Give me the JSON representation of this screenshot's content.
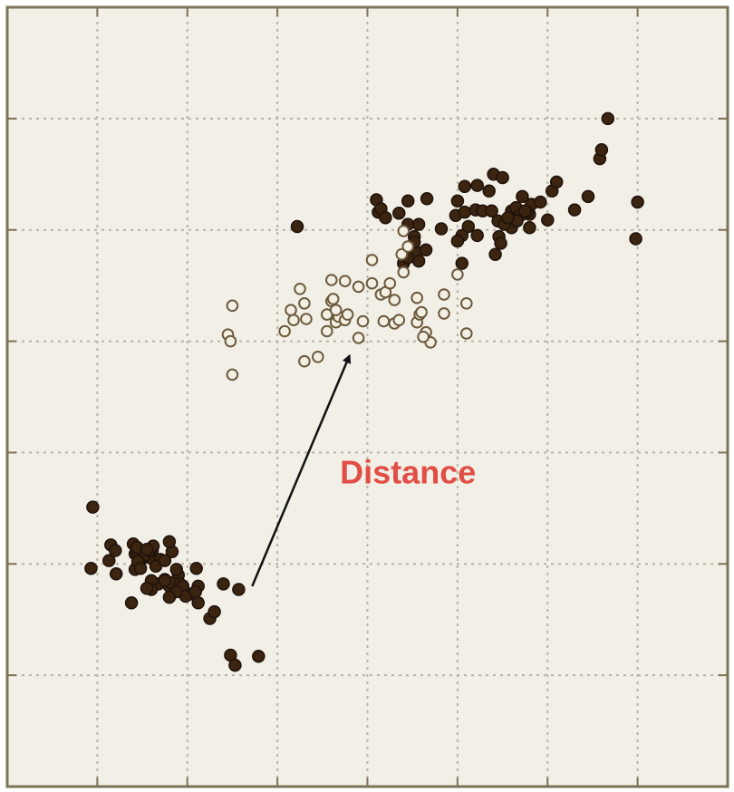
{
  "chart_data": {
    "type": "scatter",
    "title": "",
    "xlabel": "",
    "ylabel": "",
    "xlim": [
      0,
      8
    ],
    "ylim": [
      0,
      7
    ],
    "x_gridlines": [
      1,
      2,
      3,
      4,
      5,
      6,
      7
    ],
    "y_gridlines": [
      1,
      2,
      3,
      4,
      5,
      6
    ],
    "grid": true,
    "legend": "none",
    "series": [
      {
        "marker": "filled",
        "points": [
          [
            0.95,
            2.51
          ],
          [
            1.15,
            2.17
          ],
          [
            0.93,
            1.96
          ],
          [
            1.13,
            2.03
          ],
          [
            1.21,
            1.91
          ],
          [
            1.4,
            2.18
          ],
          [
            1.2,
            2.12
          ],
          [
            1.42,
            2.09
          ],
          [
            1.45,
            2.1
          ],
          [
            1.6,
            2.05
          ],
          [
            1.44,
            2.15
          ],
          [
            1.7,
            2.04
          ],
          [
            1.42,
            1.95
          ],
          [
            1.5,
            2.05
          ],
          [
            1.53,
            2.08
          ],
          [
            1.46,
            2.02
          ],
          [
            1.61,
            2.12
          ],
          [
            1.83,
            2.11
          ],
          [
            1.58,
            2.12
          ],
          [
            1.8,
            2.2
          ],
          [
            1.62,
            2.16
          ],
          [
            1.45,
            2.02
          ],
          [
            1.48,
            1.96
          ],
          [
            1.65,
            1.98
          ],
          [
            1.55,
            2.13
          ],
          [
            1.75,
            2.03
          ],
          [
            1.9,
            1.9
          ],
          [
            1.75,
            1.86
          ],
          [
            1.8,
            1.8
          ],
          [
            1.95,
            1.77
          ],
          [
            1.68,
            1.82
          ],
          [
            1.82,
            1.83
          ],
          [
            1.88,
            1.95
          ],
          [
            2.1,
            1.96
          ],
          [
            1.6,
            1.85
          ],
          [
            1.75,
            1.85
          ],
          [
            1.92,
            1.82
          ],
          [
            1.95,
            1.8
          ],
          [
            2.05,
            1.73
          ],
          [
            1.98,
            1.71
          ],
          [
            2.12,
            1.65
          ],
          [
            2.25,
            1.51
          ],
          [
            2.3,
            1.57
          ],
          [
            2.12,
            1.8
          ],
          [
            1.88,
            1.75
          ],
          [
            2.09,
            1.75
          ],
          [
            1.6,
            1.77
          ],
          [
            1.38,
            1.65
          ],
          [
            1.55,
            1.78
          ],
          [
            1.8,
            1.7
          ],
          [
            2.4,
            1.82
          ],
          [
            2.57,
            1.77
          ],
          [
            2.48,
            1.18
          ],
          [
            2.53,
            1.09
          ],
          [
            2.79,
            1.17
          ],
          [
            3.22,
            5.03
          ],
          [
            4.12,
            5.16
          ],
          [
            4.1,
            5.27
          ],
          [
            4.15,
            5.19
          ],
          [
            4.2,
            5.11
          ],
          [
            4.35,
            5.15
          ],
          [
            4.45,
            5.26
          ],
          [
            4.45,
            5.05
          ],
          [
            4.57,
            5.05
          ],
          [
            4.66,
            5.28
          ],
          [
            4.52,
            4.94
          ],
          [
            4.5,
            4.85
          ],
          [
            4.55,
            4.8
          ],
          [
            4.4,
            4.7
          ],
          [
            4.57,
            4.72
          ],
          [
            4.65,
            4.82
          ],
          [
            4.45,
            4.75
          ],
          [
            4.52,
            4.89
          ],
          [
            4.82,
            5.01
          ],
          [
            4.98,
            5.13
          ],
          [
            5.0,
            5.26
          ],
          [
            5.08,
            5.16
          ],
          [
            5.08,
            5.39
          ],
          [
            5.22,
            5.4
          ],
          [
            5.12,
            5.03
          ],
          [
            5.05,
            4.95
          ],
          [
            5.0,
            4.9
          ],
          [
            5.05,
            4.7
          ],
          [
            5.2,
            5.18
          ],
          [
            5.22,
            4.95
          ],
          [
            5.28,
            5.17
          ],
          [
            5.38,
            5.17
          ],
          [
            5.4,
            5.5
          ],
          [
            5.35,
            5.35
          ],
          [
            5.5,
            5.47
          ],
          [
            5.6,
            5.02
          ],
          [
            5.46,
            4.94
          ],
          [
            5.45,
            5.08
          ],
          [
            5.52,
            5.05
          ],
          [
            5.48,
            4.88
          ],
          [
            5.42,
            4.78
          ],
          [
            5.6,
            5.17
          ],
          [
            5.65,
            5.2
          ],
          [
            5.7,
            5.13
          ],
          [
            5.72,
            5.3
          ],
          [
            5.8,
            5.14
          ],
          [
            5.82,
            5.23
          ],
          [
            5.92,
            5.25
          ],
          [
            5.8,
            5.02
          ],
          [
            5.77,
            5.16
          ],
          [
            5.66,
            5.08
          ],
          [
            6.0,
            5.09
          ],
          [
            6.05,
            5.35
          ],
          [
            6.1,
            5.43
          ],
          [
            6.3,
            5.18
          ],
          [
            6.45,
            5.3
          ],
          [
            6.58,
            5.64
          ],
          [
            6.6,
            5.72
          ],
          [
            6.67,
            6.0
          ],
          [
            7.0,
            5.25
          ],
          [
            6.98,
            4.92
          ],
          [
            5.56,
            5.11
          ],
          [
            5.75,
            5.17
          ]
        ]
      },
      {
        "marker": "hollow",
        "points": [
          [
            2.45,
            4.06
          ],
          [
            2.48,
            4.0
          ],
          [
            2.5,
            4.32
          ],
          [
            2.5,
            3.7
          ],
          [
            3.08,
            4.09
          ],
          [
            3.15,
            4.28
          ],
          [
            3.18,
            4.19
          ],
          [
            3.25,
            4.47
          ],
          [
            3.3,
            4.34
          ],
          [
            3.32,
            4.2
          ],
          [
            3.3,
            3.82
          ],
          [
            3.45,
            3.86
          ],
          [
            3.55,
            4.24
          ],
          [
            3.55,
            4.09
          ],
          [
            3.6,
            4.55
          ],
          [
            3.6,
            4.36
          ],
          [
            3.65,
            4.17
          ],
          [
            3.68,
            4.22
          ],
          [
            3.75,
            4.19
          ],
          [
            3.78,
            4.24
          ],
          [
            3.75,
            4.54
          ],
          [
            3.9,
            4.49
          ],
          [
            3.9,
            4.03
          ],
          [
            3.95,
            4.18
          ],
          [
            4.05,
            4.73
          ],
          [
            4.05,
            4.52
          ],
          [
            4.15,
            4.42
          ],
          [
            4.18,
            4.18
          ],
          [
            4.2,
            4.44
          ],
          [
            4.25,
            4.52
          ],
          [
            4.3,
            4.37
          ],
          [
            4.3,
            4.16
          ],
          [
            4.35,
            4.19
          ],
          [
            4.4,
            4.62
          ],
          [
            4.38,
            4.78
          ],
          [
            4.4,
            4.99
          ],
          [
            4.45,
            4.85
          ],
          [
            4.55,
            4.39
          ],
          [
            4.55,
            4.17
          ],
          [
            4.58,
            4.24
          ],
          [
            4.6,
            4.26
          ],
          [
            4.65,
            4.08
          ],
          [
            4.7,
            3.99
          ],
          [
            4.62,
            4.04
          ],
          [
            4.85,
            4.42
          ],
          [
            4.85,
            4.25
          ],
          [
            5.0,
            4.6
          ],
          [
            5.1,
            4.34
          ],
          [
            5.1,
            4.07
          ],
          [
            3.62,
            4.38
          ],
          [
            3.65,
            4.28
          ]
        ]
      }
    ],
    "annotations": [
      {
        "type": "arrow",
        "from": [
          2.72,
          1.8
        ],
        "to": [
          3.8,
          3.87
        ]
      },
      {
        "type": "text",
        "text": "Distance",
        "at": [
          4.45,
          2.8
        ]
      }
    ]
  },
  "colors": {
    "background": "#f2efe7",
    "frame": "#7c7357",
    "grid": "#b9b3a5",
    "filled_marker_fill": "#3b2410",
    "filled_marker_stroke": "#1e120a",
    "hollow_marker_fill": "#f3efe2",
    "hollow_marker_stroke": "#6b5a3e",
    "arrow": "#111111",
    "annotation_text": "#e04e45"
  }
}
